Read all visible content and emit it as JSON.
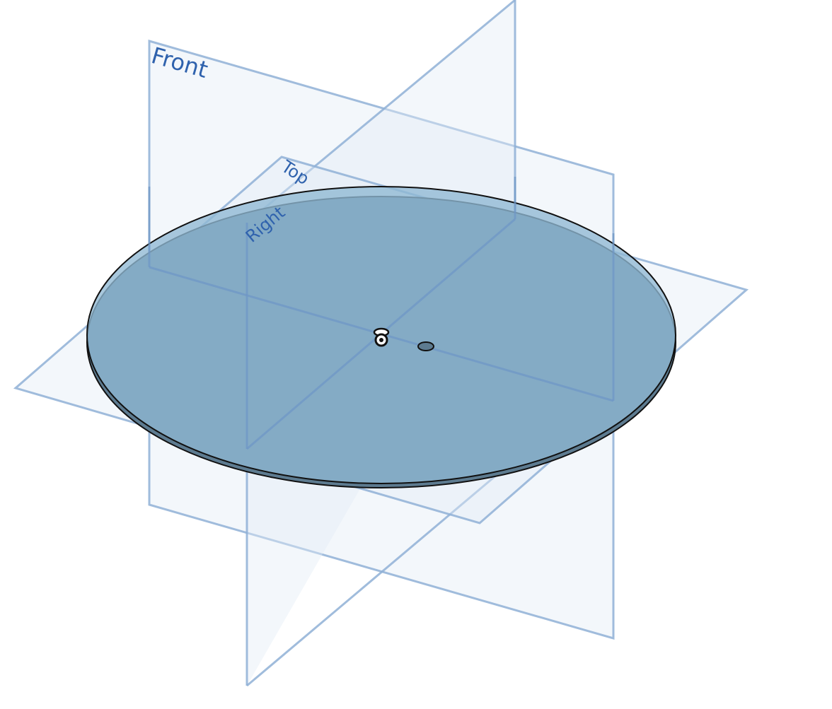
{
  "planes": {
    "front": {
      "label": "Front"
    },
    "top": {
      "label": "Top"
    },
    "right": {
      "label": "Right"
    }
  },
  "colors": {
    "plane_edge": "#8fb0d6",
    "plane_label": "#2f62ad",
    "disk_fill": "#8fb9d4",
    "disk_edge": "#5d7b90"
  },
  "icons": {
    "origin": "origin-icon",
    "mate_connector": "mate-connector-icon"
  }
}
